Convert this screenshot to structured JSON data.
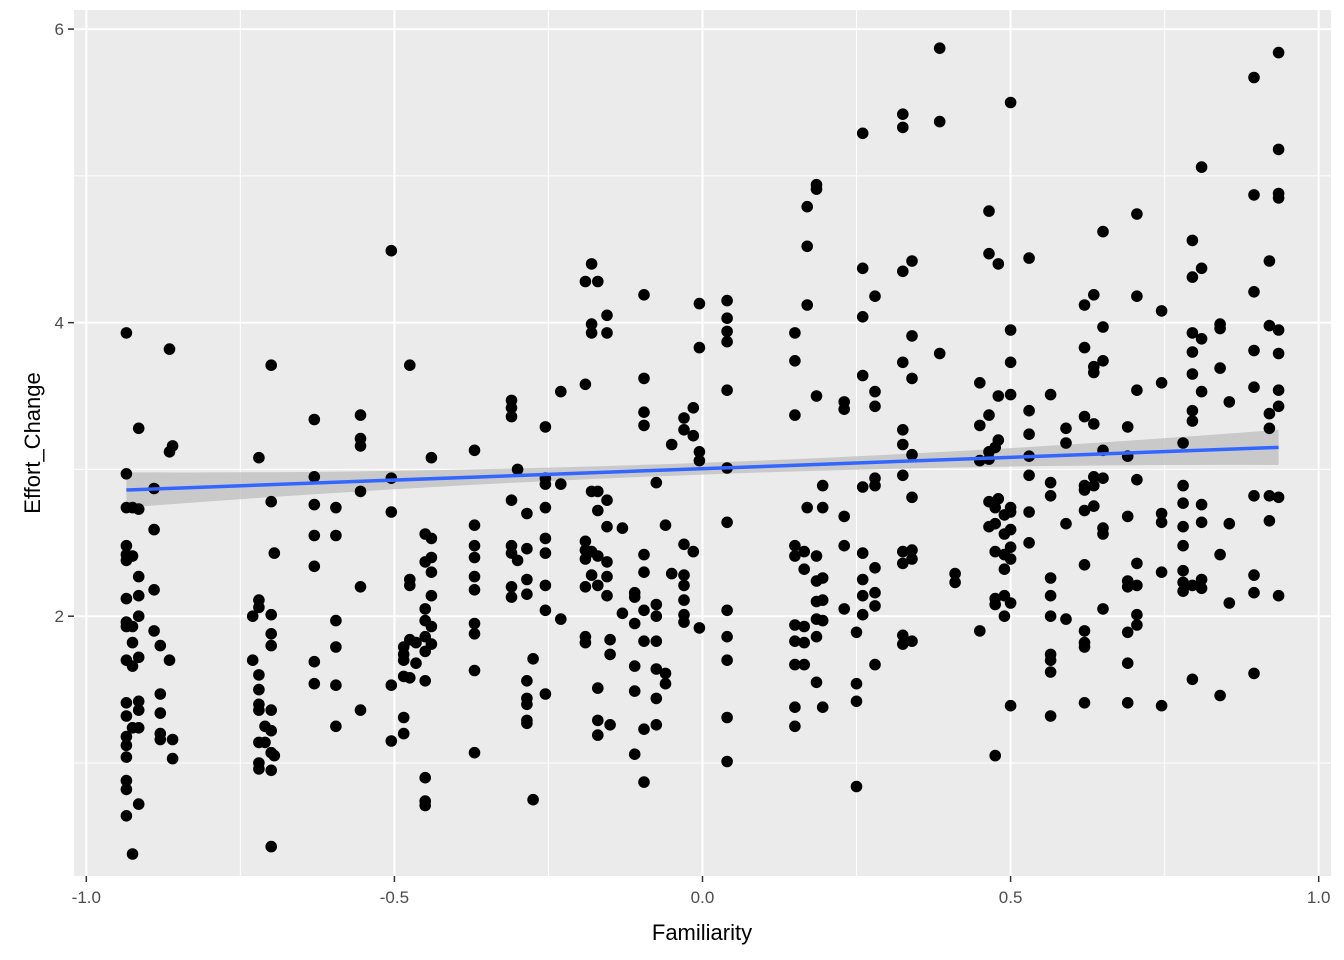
{
  "chart_data": {
    "type": "scatter",
    "xlabel": "Familiarity",
    "ylabel": "Effort_Change",
    "xlim": [
      -1.02,
      1.02
    ],
    "ylim": [
      0.23,
      6.13
    ],
    "x_ticks": [
      -1.0,
      -0.5,
      0.0,
      0.5,
      1.0
    ],
    "x_tick_labels": [
      "-1.0",
      "-0.5",
      "0.0",
      "0.5",
      "1.0"
    ],
    "y_ticks": [
      2,
      4,
      6
    ],
    "y_tick_labels": [
      "2",
      "4",
      "6"
    ],
    "grid": true,
    "background": "#ebebeb",
    "point_color": "#000000",
    "trend": {
      "type": "linear",
      "x": [
        -0.935,
        0.935
      ],
      "y": [
        2.86,
        3.15
      ],
      "ci_half_width_ends": 0.12,
      "ci_half_width_center": 0.04,
      "color": "#3366ff",
      "band_color": "#bebebe"
    },
    "groups": [
      {
        "x": -0.935,
        "y": [
          3.93,
          2.97,
          2.74,
          2.48,
          2.42,
          2.38,
          2.12,
          1.96,
          1.93,
          1.7,
          1.41,
          1.32,
          1.18,
          1.12,
          1.04,
          0.88,
          0.82,
          0.64
        ]
      },
      {
        "x": -0.925,
        "y": [
          2.74,
          2.41,
          1.93,
          1.82,
          1.66,
          1.24,
          0.38
        ]
      },
      {
        "x": -0.915,
        "y": [
          3.28,
          2.73,
          2.27,
          2.14,
          2.0,
          1.72,
          1.42,
          1.36,
          1.24,
          0.72
        ]
      },
      {
        "x": -0.89,
        "y": [
          2.87,
          2.59,
          2.18,
          1.9
        ]
      },
      {
        "x": -0.88,
        "y": [
          1.8,
          1.47,
          1.34,
          1.2,
          1.16
        ]
      },
      {
        "x": -0.865,
        "y": [
          3.82,
          3.12,
          1.7
        ]
      },
      {
        "x": -0.86,
        "y": [
          3.16,
          1.16,
          1.03
        ]
      },
      {
        "x": -0.73,
        "y": [
          2.0,
          1.7
        ]
      },
      {
        "x": -0.72,
        "y": [
          3.08,
          2.11,
          2.06,
          1.6,
          1.5,
          1.4,
          1.36,
          1.14,
          1.0,
          0.96
        ]
      },
      {
        "x": -0.71,
        "y": [
          1.25,
          1.14
        ]
      },
      {
        "x": -0.7,
        "y": [
          3.71,
          2.78,
          2.01,
          1.88,
          1.8,
          1.36,
          1.22,
          1.07,
          0.95,
          0.43
        ]
      },
      {
        "x": -0.695,
        "y": [
          2.43,
          1.05
        ]
      },
      {
        "x": -0.63,
        "y": [
          3.34,
          2.95,
          2.76,
          2.55,
          2.34,
          1.69,
          1.54
        ]
      },
      {
        "x": -0.595,
        "y": [
          2.74,
          2.55,
          1.97,
          1.79,
          1.53,
          1.25
        ]
      },
      {
        "x": -0.555,
        "y": [
          3.37,
          3.21,
          3.16,
          2.85,
          2.2,
          1.36
        ]
      },
      {
        "x": -0.505,
        "y": [
          4.49,
          2.94,
          2.71,
          1.53,
          1.15
        ]
      },
      {
        "x": -0.485,
        "y": [
          1.79,
          1.74,
          1.7,
          1.59,
          1.31,
          1.2
        ]
      },
      {
        "x": -0.475,
        "y": [
          3.71,
          2.25,
          2.21,
          1.84,
          1.58
        ]
      },
      {
        "x": -0.465,
        "y": [
          1.82,
          1.68
        ]
      },
      {
        "x": -0.45,
        "y": [
          2.56,
          2.37,
          2.05,
          1.97,
          1.86,
          1.76,
          1.56,
          0.9,
          0.74,
          0.71
        ]
      },
      {
        "x": -0.44,
        "y": [
          3.08,
          2.53,
          2.4,
          2.3,
          2.14,
          1.93,
          1.81
        ]
      },
      {
        "x": -0.37,
        "y": [
          3.13,
          2.62,
          2.48,
          2.4,
          2.27,
          2.18,
          1.95,
          1.88,
          1.63,
          1.07
        ]
      },
      {
        "x": -0.31,
        "y": [
          3.47,
          3.42,
          3.36,
          2.79,
          2.48,
          2.43,
          2.2,
          2.13
        ]
      },
      {
        "x": -0.3,
        "y": [
          3.0,
          2.38
        ]
      },
      {
        "x": -0.285,
        "y": [
          2.7,
          2.46,
          2.25,
          2.15,
          1.56,
          1.44,
          1.4,
          1.29,
          1.27
        ]
      },
      {
        "x": -0.275,
        "y": [
          1.71,
          0.75
        ]
      },
      {
        "x": -0.255,
        "y": [
          3.29,
          2.94,
          2.9,
          2.74,
          2.53,
          2.43,
          2.21,
          2.04,
          1.47
        ]
      },
      {
        "x": -0.23,
        "y": [
          3.53,
          2.9,
          1.98
        ]
      },
      {
        "x": -0.19,
        "y": [
          4.28,
          3.58,
          2.51,
          2.45,
          2.39,
          2.2,
          1.86,
          1.82
        ]
      },
      {
        "x": -0.18,
        "y": [
          4.4,
          3.99,
          3.93,
          2.85,
          2.44,
          2.28
        ]
      },
      {
        "x": -0.17,
        "y": [
          4.28,
          2.85,
          2.72,
          2.41,
          2.21,
          1.51,
          1.29,
          1.19
        ]
      },
      {
        "x": -0.155,
        "y": [
          4.05,
          3.93,
          2.79,
          2.61,
          2.37,
          2.27,
          2.14
        ]
      },
      {
        "x": -0.15,
        "y": [
          1.84,
          1.74,
          1.26
        ]
      },
      {
        "x": -0.13,
        "y": [
          2.6,
          2.02
        ]
      },
      {
        "x": -0.11,
        "y": [
          2.16,
          2.13,
          1.95,
          1.66,
          1.49,
          1.06
        ]
      },
      {
        "x": -0.095,
        "y": [
          4.19,
          3.62,
          3.39,
          3.3,
          2.42,
          2.3,
          2.04,
          1.83,
          1.23,
          0.87
        ]
      },
      {
        "x": -0.075,
        "y": [
          2.91,
          2.08,
          2.0,
          1.83,
          1.64,
          1.44,
          1.26
        ]
      },
      {
        "x": -0.06,
        "y": [
          2.62,
          1.61,
          1.54
        ]
      },
      {
        "x": -0.05,
        "y": [
          3.17,
          2.29
        ]
      },
      {
        "x": -0.03,
        "y": [
          3.35,
          3.27,
          2.49,
          2.28,
          2.21,
          2.11,
          2.01,
          1.96
        ]
      },
      {
        "x": -0.015,
        "y": [
          3.42,
          3.23,
          2.44
        ]
      },
      {
        "x": -0.005,
        "y": [
          4.13,
          3.83,
          3.12,
          3.06,
          1.92
        ]
      },
      {
        "x": 0.04,
        "y": [
          4.15,
          4.03,
          3.94,
          3.87,
          3.54,
          3.01,
          2.64,
          2.04,
          1.86,
          1.7,
          1.31,
          1.01
        ]
      },
      {
        "x": 0.15,
        "y": [
          3.93,
          3.74,
          3.37,
          2.48,
          2.41,
          1.94,
          1.83,
          1.67,
          1.38,
          1.25
        ]
      },
      {
        "x": 0.165,
        "y": [
          2.44,
          2.32,
          1.93,
          1.82,
          1.67
        ]
      },
      {
        "x": 0.17,
        "y": [
          4.79,
          4.52,
          4.12,
          2.74
        ]
      },
      {
        "x": 0.185,
        "y": [
          4.94,
          4.91,
          3.5,
          2.41,
          2.24,
          2.1,
          1.98,
          1.86,
          1.55
        ]
      },
      {
        "x": 0.195,
        "y": [
          2.89,
          2.74,
          2.26,
          2.11,
          1.97,
          1.38
        ]
      },
      {
        "x": 0.23,
        "y": [
          3.46,
          3.41,
          2.68,
          2.48,
          2.05
        ]
      },
      {
        "x": 0.25,
        "y": [
          1.89,
          1.54,
          1.42,
          0.84
        ]
      },
      {
        "x": 0.26,
        "y": [
          5.29,
          4.37,
          4.04,
          3.64,
          2.88,
          2.43,
          2.25,
          2.14,
          2.01
        ]
      },
      {
        "x": 0.28,
        "y": [
          4.18,
          3.53,
          3.43,
          2.94,
          2.89,
          2.33,
          2.16,
          2.07,
          1.67
        ]
      },
      {
        "x": 0.325,
        "y": [
          5.42,
          5.33,
          4.35,
          3.73,
          3.27,
          3.17,
          2.96,
          2.44,
          2.36,
          1.87,
          1.81
        ]
      },
      {
        "x": 0.34,
        "y": [
          4.42,
          3.91,
          3.62,
          3.1,
          2.81,
          2.45,
          2.39,
          1.83
        ]
      },
      {
        "x": 0.385,
        "y": [
          5.87,
          5.37,
          3.79
        ]
      },
      {
        "x": 0.41,
        "y": [
          2.29,
          2.23
        ]
      },
      {
        "x": 0.45,
        "y": [
          3.59,
          3.3,
          3.06,
          1.9
        ]
      },
      {
        "x": 0.465,
        "y": [
          4.76,
          4.47,
          3.37,
          3.12,
          3.07,
          2.78,
          2.61
        ]
      },
      {
        "x": 0.475,
        "y": [
          3.15,
          2.74,
          2.63,
          2.44,
          2.12,
          2.08,
          1.05
        ]
      },
      {
        "x": 0.48,
        "y": [
          4.4,
          3.5,
          3.2,
          2.8
        ]
      },
      {
        "x": 0.49,
        "y": [
          2.69,
          2.56,
          2.42,
          2.32,
          2.14,
          2.0
        ]
      },
      {
        "x": 0.5,
        "y": [
          5.5,
          3.95,
          3.73,
          3.51,
          2.74,
          2.71,
          2.59,
          2.47,
          2.39,
          2.09,
          1.39
        ]
      },
      {
        "x": 0.53,
        "y": [
          4.44,
          3.4,
          3.24,
          3.09,
          2.96,
          2.71,
          2.5
        ]
      },
      {
        "x": 0.565,
        "y": [
          3.51,
          2.91,
          2.82,
          2.26,
          2.14,
          2.0,
          1.74,
          1.7,
          1.62,
          1.32
        ]
      },
      {
        "x": 0.59,
        "y": [
          3.28,
          3.18,
          2.63,
          1.98
        ]
      },
      {
        "x": 0.62,
        "y": [
          4.12,
          3.83,
          3.36,
          2.89,
          2.86,
          2.72,
          2.35,
          1.9,
          1.82,
          1.79,
          1.41
        ]
      },
      {
        "x": 0.635,
        "y": [
          4.19,
          3.7,
          3.66,
          3.31,
          2.95,
          2.89,
          2.75
        ]
      },
      {
        "x": 0.65,
        "y": [
          4.62,
          3.97,
          3.74,
          3.13,
          2.94,
          2.6,
          2.56,
          2.05
        ]
      },
      {
        "x": 0.69,
        "y": [
          3.29,
          3.09,
          2.68,
          2.24,
          2.2,
          1.89,
          1.68,
          1.41
        ]
      },
      {
        "x": 0.705,
        "y": [
          4.74,
          4.18,
          3.54,
          2.93,
          2.36,
          2.21,
          2.01,
          1.94
        ]
      },
      {
        "x": 0.745,
        "y": [
          4.08,
          3.59,
          2.7,
          2.64,
          2.3,
          1.39
        ]
      },
      {
        "x": 0.78,
        "y": [
          3.18,
          2.89,
          2.77,
          2.61,
          2.48,
          2.31,
          2.23,
          2.17
        ]
      },
      {
        "x": 0.795,
        "y": [
          4.56,
          4.31,
          3.93,
          3.8,
          3.65,
          3.4,
          3.33,
          2.21,
          1.57
        ]
      },
      {
        "x": 0.81,
        "y": [
          5.06,
          4.37,
          3.89,
          3.53,
          2.76,
          2.64,
          2.25,
          2.19
        ]
      },
      {
        "x": 0.84,
        "y": [
          3.99,
          3.96,
          3.69,
          2.42,
          1.46
        ]
      },
      {
        "x": 0.855,
        "y": [
          3.46,
          2.63,
          2.09
        ]
      },
      {
        "x": 0.895,
        "y": [
          5.67,
          4.87,
          4.21,
          3.81,
          3.56,
          2.82,
          2.28,
          2.16,
          1.61
        ]
      },
      {
        "x": 0.92,
        "y": [
          4.42,
          3.98,
          3.38,
          3.28,
          2.82,
          2.65
        ]
      },
      {
        "x": 0.935,
        "y": [
          5.84,
          5.18,
          4.88,
          4.85,
          3.95,
          3.79,
          3.54,
          3.43,
          2.81,
          2.14
        ]
      }
    ]
  }
}
